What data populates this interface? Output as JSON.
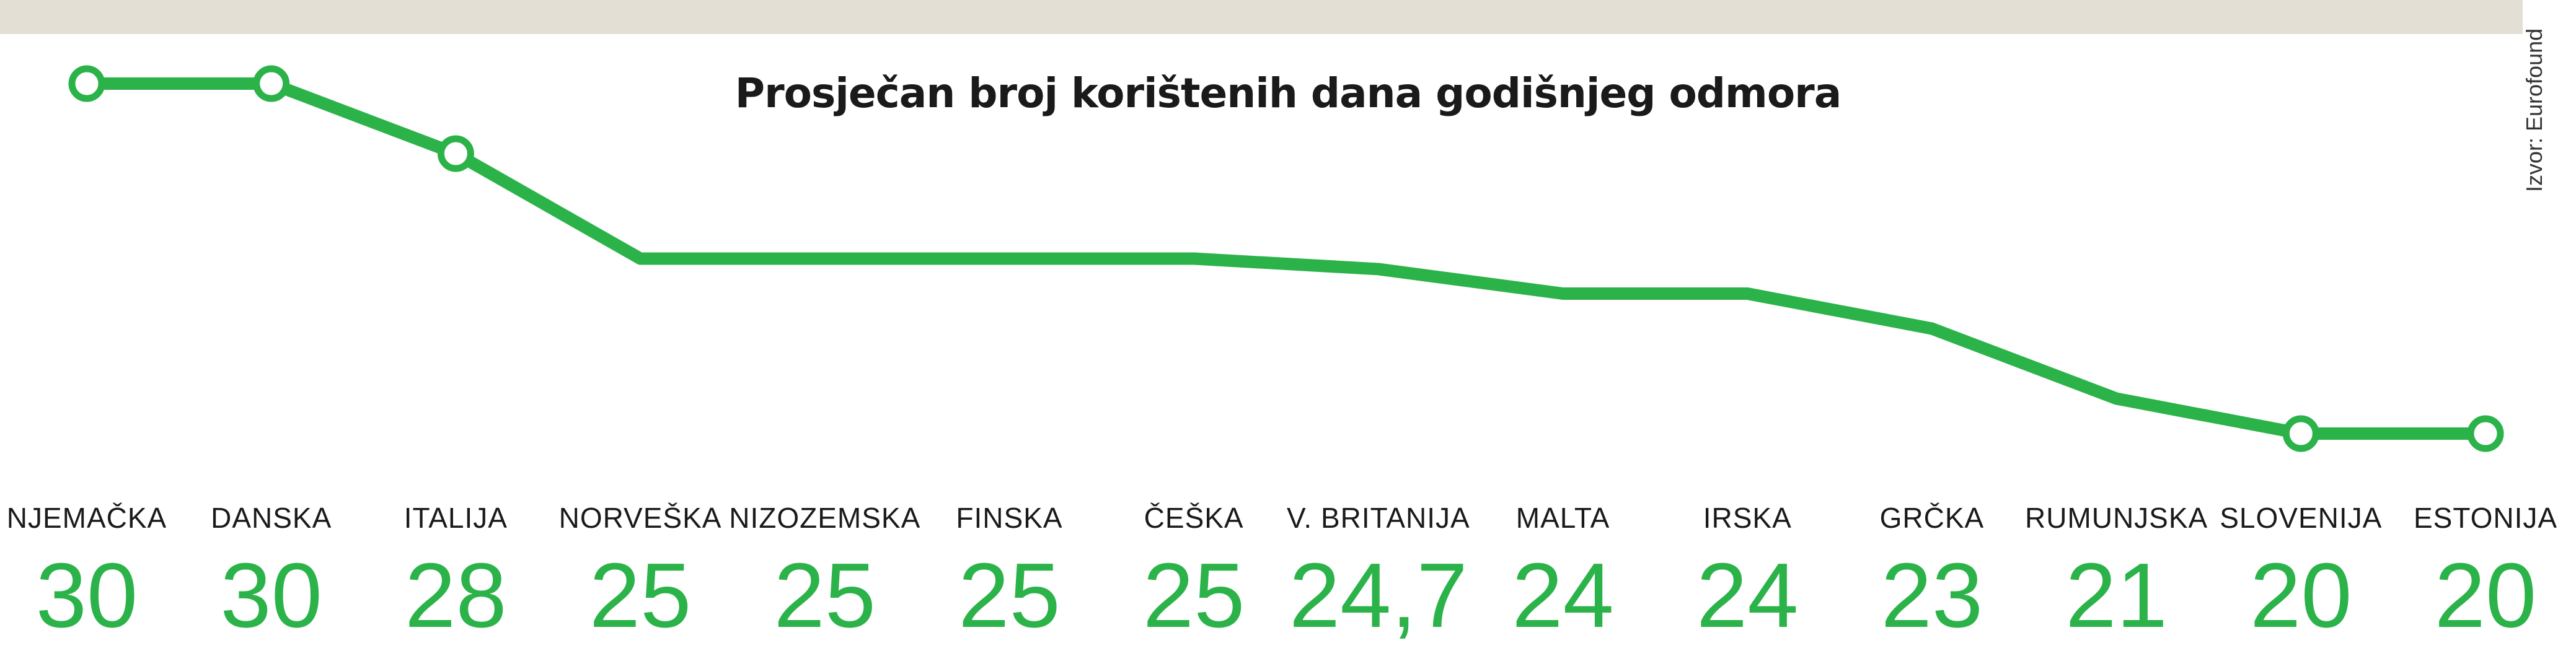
{
  "chart_data": {
    "type": "line",
    "title": "Prosječan broj korištenih dana godišnjeg odmora",
    "source": "Izvor: Eurofound",
    "categories": [
      "NJEMAČKA",
      "DANSKA",
      "ITALIJA",
      "NORVEŠKA",
      "NIZOZEMSKA",
      "FINSKA",
      "ČEŠKA",
      "V. BRITANIJA",
      "MALTA",
      "IRSKA",
      "GRČKA",
      "RUMUNJSKA",
      "SLOVENIJA",
      "ESTONIJA"
    ],
    "values": [
      30,
      30,
      28,
      25,
      25,
      25,
      25,
      24.7,
      24,
      24,
      23,
      21,
      20,
      20
    ],
    "value_labels": [
      "30",
      "30",
      "28",
      "25",
      "25",
      "25",
      "25",
      "24,7",
      "24",
      "24",
      "23",
      "21",
      "20",
      "20"
    ],
    "ylim": [
      20,
      30
    ],
    "line_color": "#2bb34a",
    "marker_style": "hollow circles at first, second, third and last two points",
    "grid": false,
    "legend": "none"
  }
}
